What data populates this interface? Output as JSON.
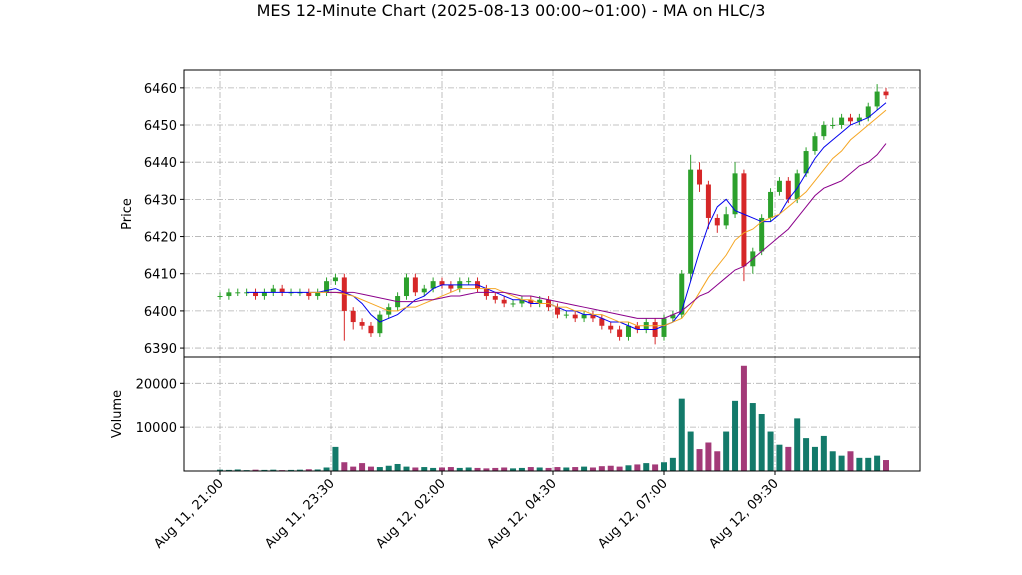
{
  "chart_data": [
    {
      "type": "candlestick",
      "title": "MES 12-Minute Chart (2025-08-13 00:00~01:00) - MA on HLC/3",
      "ylabel": "Price",
      "x": [
        "Aug 11, 21:00",
        "Aug 11, 21:12",
        "Aug 11, 21:24",
        "Aug 11, 21:36",
        "Aug 11, 21:48",
        "Aug 11, 22:00",
        "Aug 11, 22:12",
        "Aug 11, 22:24",
        "Aug 11, 22:36",
        "Aug 11, 22:48",
        "Aug 11, 23:00",
        "Aug 11, 23:12",
        "Aug 11, 23:24",
        "Aug 11, 23:36",
        "Aug 11, 23:48",
        "Aug 12, 00:00",
        "Aug 12, 00:12",
        "Aug 12, 00:24",
        "Aug 12, 00:36",
        "Aug 12, 00:48",
        "Aug 12, 01:00",
        "Aug 12, 01:12",
        "Aug 12, 01:24",
        "Aug 12, 01:36",
        "Aug 12, 01:48",
        "Aug 12, 02:00",
        "Aug 12, 02:12",
        "Aug 12, 02:24",
        "Aug 12, 02:36",
        "Aug 12, 02:48",
        "Aug 12, 03:00",
        "Aug 12, 03:12",
        "Aug 12, 03:24",
        "Aug 12, 03:36",
        "Aug 12, 03:48",
        "Aug 12, 04:00",
        "Aug 12, 04:12",
        "Aug 12, 04:24",
        "Aug 12, 04:36",
        "Aug 12, 04:48",
        "Aug 12, 05:00",
        "Aug 12, 05:12",
        "Aug 12, 05:24",
        "Aug 12, 05:36",
        "Aug 12, 05:48",
        "Aug 12, 06:00",
        "Aug 12, 06:12",
        "Aug 12, 06:24",
        "Aug 12, 06:36",
        "Aug 12, 06:48",
        "Aug 12, 07:00",
        "Aug 12, 07:12",
        "Aug 12, 07:24",
        "Aug 12, 07:36",
        "Aug 12, 07:48",
        "Aug 12, 08:00",
        "Aug 12, 08:12",
        "Aug 12, 08:24",
        "Aug 12, 08:36",
        "Aug 12, 08:48",
        "Aug 12, 09:00",
        "Aug 12, 09:12",
        "Aug 12, 09:24",
        "Aug 12, 09:36",
        "Aug 12, 09:48",
        "Aug 12, 10:00",
        "Aug 12, 10:12",
        "Aug 12, 10:24",
        "Aug 12, 10:36",
        "Aug 12, 10:48",
        "Aug 12, 11:00",
        "Aug 12, 11:12",
        "Aug 12, 11:24",
        "Aug 12, 11:36",
        "Aug 12, 11:48",
        "Aug 12, 12:00"
      ],
      "open": [
        6404,
        6404,
        6405,
        6405,
        6405,
        6404,
        6405,
        6406,
        6405,
        6405,
        6405,
        6404,
        6405,
        6408,
        6409,
        6400,
        6397,
        6396,
        6394,
        6399,
        6401,
        6404,
        6409,
        6405,
        6406,
        6408,
        6407,
        6406,
        6408,
        6408,
        6406,
        6404,
        6403,
        6402,
        6402,
        6403,
        6402,
        6403,
        6401,
        6399,
        6399,
        6398,
        6399,
        6398,
        6396,
        6395,
        6393,
        6396,
        6395,
        6397,
        6393,
        6398,
        6399,
        6410,
        6438,
        6434,
        6425,
        6423,
        6426,
        6437,
        6412,
        6416,
        6425,
        6432,
        6435,
        6430,
        6437,
        6443,
        6447,
        6450,
        6450,
        6452,
        6451,
        6452,
        6455,
        6459
      ],
      "high": [
        6405,
        6406,
        6406,
        6406,
        6406,
        6406,
        6407,
        6407,
        6406,
        6406,
        6406,
        6406,
        6409,
        6410,
        6410,
        6401,
        6398,
        6397,
        6400,
        6402,
        6405,
        6410,
        6410,
        6407,
        6409,
        6409,
        6408,
        6409,
        6409,
        6409,
        6407,
        6405,
        6404,
        6403,
        6404,
        6404,
        6404,
        6404,
        6402,
        6400,
        6400,
        6400,
        6400,
        6399,
        6397,
        6396,
        6397,
        6397,
        6398,
        6398,
        6399,
        6400,
        6411,
        6442,
        6440,
        6435,
        6426,
        6428,
        6440,
        6438,
        6417,
        6426,
        6433,
        6436,
        6436,
        6438,
        6444,
        6448,
        6451,
        6452,
        6453,
        6453,
        6453,
        6456,
        6461,
        6460
      ],
      "low": [
        6403,
        6403,
        6404,
        6404,
        6403,
        6403,
        6404,
        6404,
        6404,
        6404,
        6403,
        6403,
        6404,
        6407,
        6392,
        6395,
        6395,
        6393,
        6393,
        6398,
        6400,
        6403,
        6404,
        6404,
        6405,
        6406,
        6405,
        6405,
        6407,
        6405,
        6403,
        6402,
        6401,
        6401,
        6401,
        6401,
        6401,
        6400,
        6398,
        6398,
        6397,
        6397,
        6397,
        6395,
        6394,
        6392,
        6392,
        6394,
        6394,
        6391,
        6392,
        6397,
        6398,
        6408,
        6432,
        6422,
        6421,
        6422,
        6425,
        6408,
        6410,
        6415,
        6424,
        6431,
        6429,
        6429,
        6436,
        6442,
        6446,
        6449,
        6449,
        6450,
        6450,
        6451,
        6454,
        6457
      ],
      "close": [
        6404,
        6405,
        6405,
        6405,
        6404,
        6405,
        6406,
        6405,
        6405,
        6405,
        6404,
        6405,
        6408,
        6409,
        6400,
        6397,
        6396,
        6394,
        6399,
        6401,
        6404,
        6409,
        6405,
        6406,
        6408,
        6407,
        6406,
        6408,
        6408,
        6406,
        6404,
        6403,
        6402,
        6402,
        6403,
        6402,
        6403,
        6401,
        6399,
        6399,
        6398,
        6399,
        6398,
        6396,
        6395,
        6393,
        6396,
        6395,
        6397,
        6393,
        6398,
        6399,
        6410,
        6438,
        6434,
        6425,
        6423,
        6426,
        6437,
        6412,
        6416,
        6425,
        6432,
        6435,
        6430,
        6437,
        6443,
        6447,
        6450,
        6450,
        6452,
        6451,
        6452,
        6455,
        6459,
        6458
      ],
      "up_color": "#2ca02c",
      "down_color": "#d62728",
      "series": [
        {
          "color": "#0000ee",
          "values": [
            null,
            null,
            null,
            6405,
            6405,
            6405,
            6405,
            6405,
            6405,
            6405,
            6405,
            6405,
            6405.5,
            6406,
            6405,
            6404,
            6402,
            6399,
            6397,
            6398,
            6399,
            6401,
            6403,
            6404,
            6406,
            6407,
            6407,
            6407,
            6407,
            6407,
            6406,
            6405,
            6404,
            6403,
            6403,
            6402,
            6402,
            6402,
            6401,
            6400,
            6400,
            6399,
            6399,
            6398,
            6397,
            6397,
            6396,
            6395,
            6395,
            6395,
            6396,
            6397,
            6400,
            6408,
            6416,
            6423,
            6428,
            6430,
            6427,
            6426,
            6425,
            6424,
            6424,
            6426,
            6430,
            6433,
            6437,
            6441,
            6444,
            6446,
            6448,
            6450,
            6451,
            6452,
            6454,
            6456
          ]
        },
        {
          "color": "#f5a623",
          "values": [
            null,
            null,
            null,
            null,
            null,
            null,
            null,
            null,
            null,
            null,
            6405,
            6405,
            6405,
            6405,
            6404.5,
            6404,
            6403,
            6402,
            6401,
            6400,
            6400,
            6401,
            6401,
            6402,
            6403,
            6404,
            6405,
            6406,
            6406,
            6406,
            6406,
            6406,
            6405,
            6404,
            6403,
            6403,
            6402,
            6402,
            6401,
            6401,
            6400,
            6400,
            6399,
            6399,
            6398,
            6397,
            6397,
            6396,
            6396,
            6396,
            6396,
            6397,
            6398,
            6401,
            6405,
            6409,
            6412,
            6415,
            6419,
            6421,
            6422,
            6424,
            6425,
            6426,
            6428,
            6430,
            6432,
            6435,
            6438,
            6441,
            6443,
            6446,
            6448,
            6450,
            6452,
            6454
          ]
        },
        {
          "color": "#8b008b",
          "values": [
            null,
            null,
            null,
            null,
            null,
            null,
            null,
            null,
            null,
            null,
            null,
            null,
            6405,
            6405,
            6405,
            6405,
            6404.5,
            6404,
            6403.5,
            6403,
            6402.5,
            6402.5,
            6402.5,
            6403,
            6403,
            6403.5,
            6404,
            6404,
            6404.5,
            6405,
            6405,
            6405,
            6405,
            6404.5,
            6404,
            6404,
            6403.5,
            6403,
            6402.5,
            6402,
            6401.5,
            6401,
            6400.5,
            6400,
            6399.5,
            6399,
            6398.5,
            6398,
            6398,
            6398,
            6398,
            6399,
            6400,
            6402,
            6404,
            6405,
            6407,
            6409,
            6411,
            6412,
            6414,
            6416,
            6418,
            6420,
            6422,
            6425,
            6428,
            6431,
            6433,
            6434,
            6435,
            6437,
            6439,
            6440,
            6442,
            6445
          ]
        }
      ],
      "ylim": [
        6387.6,
        6464.8
      ],
      "yticks": [
        6390,
        6400,
        6410,
        6420,
        6430,
        6440,
        6450,
        6460
      ],
      "xticks": [
        "Aug 11, 21:00",
        "Aug 11, 23:30",
        "Aug 12, 02:00",
        "Aug 12, 04:30",
        "Aug 12, 07:00",
        "Aug 12, 09:30"
      ],
      "grid": true
    },
    {
      "type": "bar",
      "ylabel": "Volume",
      "values": [
        300,
        250,
        350,
        200,
        300,
        250,
        300,
        200,
        250,
        300,
        400,
        350,
        800,
        5500,
        2000,
        1000,
        1800,
        1000,
        900,
        1200,
        1600,
        1000,
        800,
        900,
        700,
        800,
        900,
        700,
        800,
        700,
        600,
        700,
        800,
        600,
        700,
        900,
        800,
        700,
        900,
        800,
        900,
        1000,
        800,
        1100,
        1200,
        1000,
        1300,
        1500,
        1800,
        1500,
        2000,
        3000,
        16500,
        9000,
        5000,
        6500,
        4500,
        9000,
        16000,
        24000,
        15500,
        13000,
        9000,
        6000,
        5500,
        12000,
        7500,
        5500,
        8000,
        4500,
        3500,
        4500,
        3000,
        3000,
        3500,
        2500
      ],
      "up_color": "#137a6a",
      "down_color": "#a33a78",
      "ylim": [
        0,
        26000
      ],
      "yticks": [
        10000,
        20000
      ],
      "xticks": [
        "Aug 11, 21:00",
        "Aug 11, 23:30",
        "Aug 12, 02:00",
        "Aug 12, 04:30",
        "Aug 12, 07:00",
        "Aug 12, 09:30"
      ],
      "grid": true
    }
  ]
}
